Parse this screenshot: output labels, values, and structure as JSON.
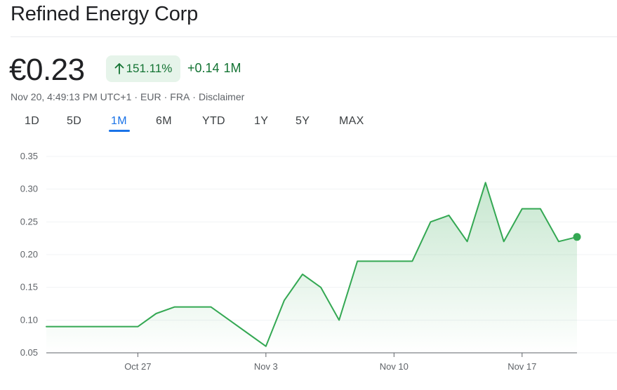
{
  "header": {
    "title": "Refined Energy Corp",
    "price": "€0.23",
    "percent_change": "151.11%",
    "abs_change": "+0.14",
    "change_period": "1M",
    "meta": {
      "timestamp": "Nov 20, 4:49:13 PM UTC+1",
      "currency": "EUR",
      "exchange": "FRA",
      "disclaimer": "Disclaimer",
      "separator": "·"
    }
  },
  "tabs": [
    "1D",
    "5D",
    "1M",
    "6M",
    "YTD",
    "1Y",
    "5Y",
    "MAX"
  ],
  "active_tab": "1M",
  "colors": {
    "up_green": "#137333",
    "line_green": "#34a853",
    "badge_bg": "#e6f4ea",
    "accent_blue": "#1a73e8",
    "grid": "#f1f3f4"
  },
  "chart_data": {
    "type": "area",
    "title": "",
    "xlabel": "",
    "ylabel": "",
    "ylim": [
      0.05,
      0.35
    ],
    "yticks": [
      "0.35",
      "0.30",
      "0.25",
      "0.20",
      "0.15",
      "0.10",
      "0.05"
    ],
    "xticks": [
      "Oct 27",
      "Nov 3",
      "Nov 10",
      "Nov 17"
    ],
    "grid": true,
    "x": [
      "Oct 22",
      "Oct 23",
      "Oct 24",
      "Oct 25",
      "Oct 26",
      "Oct 27",
      "Oct 28",
      "Oct 29",
      "Oct 30",
      "Oct 31",
      "Nov 1",
      "Nov 2",
      "Nov 3",
      "Nov 4",
      "Nov 5",
      "Nov 6",
      "Nov 7",
      "Nov 8",
      "Nov 9",
      "Nov 10",
      "Nov 11",
      "Nov 12",
      "Nov 13",
      "Nov 14",
      "Nov 15",
      "Nov 16",
      "Nov 17",
      "Nov 18",
      "Nov 19",
      "Nov 20"
    ],
    "series": [
      {
        "values": [
          0.09,
          0.09,
          0.09,
          0.09,
          0.09,
          0.09,
          0.11,
          0.12,
          0.12,
          0.12,
          0.1,
          0.08,
          0.06,
          0.13,
          0.17,
          0.15,
          0.1,
          0.19,
          0.19,
          0.19,
          0.19,
          0.25,
          0.26,
          0.22,
          0.31,
          0.22,
          0.27,
          0.27,
          0.22,
          0.227
        ]
      }
    ],
    "last_point_marker": true
  }
}
